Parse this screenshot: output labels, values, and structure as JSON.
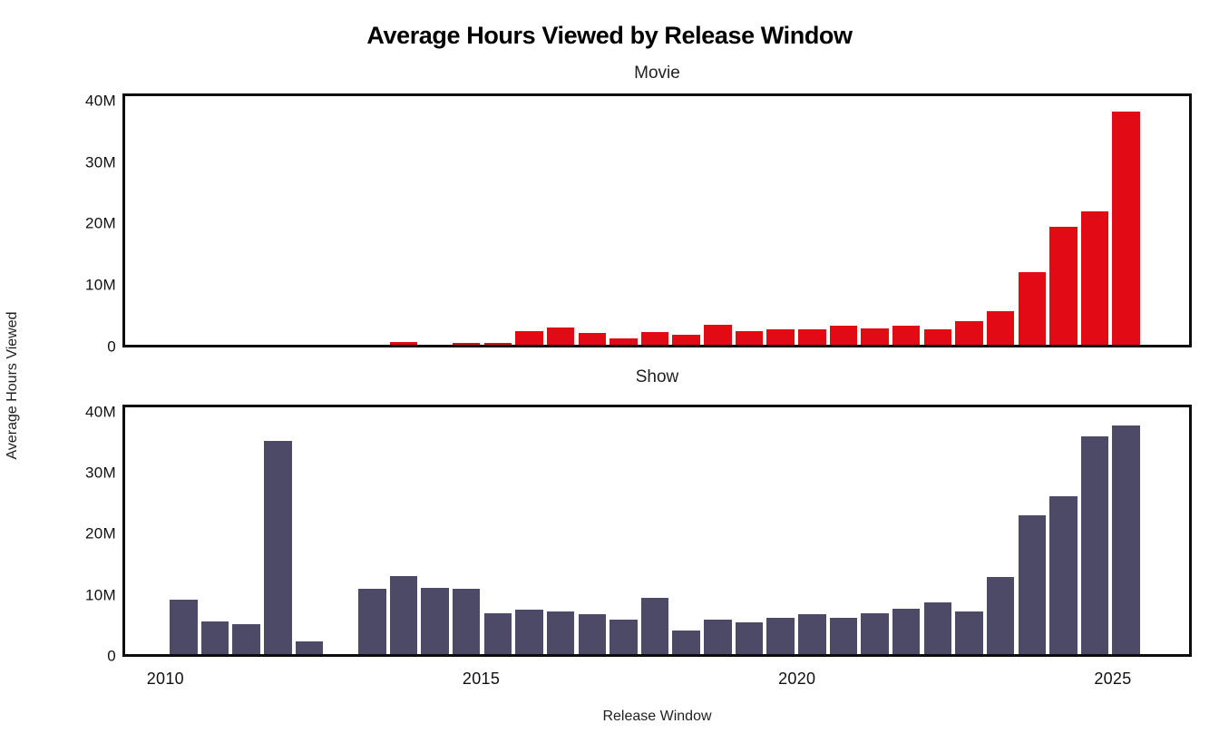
{
  "title": "Average Hours Viewed by Release Window",
  "axis": {
    "xlabel": "Release Window",
    "ylabel": "Average Hours Viewed"
  },
  "colors": {
    "movie_bar": "#E20B14",
    "show_bar": "#4C4A66",
    "frame": "#0D0D0D",
    "text": "#1A1A1A"
  },
  "chart_data": [
    {
      "type": "bar",
      "title": "Movie",
      "series_name": "Movie",
      "color": "#E20B14",
      "unit": "hours (M = millions)",
      "bar_width_years": 0.44,
      "xlim": [
        2009.32,
        2026.25
      ],
      "ylim_millions": [
        0,
        41
      ],
      "grid": false,
      "x": [
        2013.75,
        2014.75,
        2015.25,
        2015.75,
        2016.25,
        2016.75,
        2017.25,
        2017.75,
        2018.25,
        2018.75,
        2019.25,
        2019.75,
        2020.25,
        2020.75,
        2021.25,
        2021.75,
        2022.25,
        2022.75,
        2023.25,
        2023.75,
        2024.25,
        2024.75,
        2025.25
      ],
      "period_labels": [
        "2013 H2",
        "2014 H2",
        "2015 H1",
        "2015 H2",
        "2016 H1",
        "2016 H2",
        "2017 H1",
        "2017 H2",
        "2018 H1",
        "2018 H2",
        "2019 H1",
        "2019 H2",
        "2020 H1",
        "2020 H2",
        "2021 H1",
        "2021 H2",
        "2022 H1",
        "2022 H2",
        "2023 H1",
        "2023 H2",
        "2024 H1",
        "2024 H2",
        "2025 H1"
      ],
      "values_millions": [
        0.4,
        0.3,
        0.3,
        2.3,
        2.9,
        1.9,
        1.0,
        2.1,
        1.7,
        3.3,
        2.2,
        2.5,
        2.5,
        3.1,
        2.7,
        3.2,
        2.6,
        3.9,
        5.5,
        12.0,
        19.5,
        22.0,
        38.5
      ],
      "yticks": {
        "values_millions": [
          0,
          10,
          20,
          30,
          40
        ],
        "labels": [
          "0",
          "10M",
          "20M",
          "30M",
          "40M"
        ]
      },
      "xticks": {
        "values": [
          2010,
          2015,
          2020,
          2025
        ],
        "labels": [
          "2010",
          "2015",
          "2020",
          "2025"
        ],
        "shown_on_this_subplot": false
      }
    },
    {
      "type": "bar",
      "title": "Show",
      "series_name": "Show",
      "color": "#4C4A66",
      "unit": "hours (M = millions)",
      "bar_width_years": 0.44,
      "xlim": [
        2009.32,
        2026.25
      ],
      "ylim_millions": [
        0,
        41
      ],
      "grid": false,
      "x": [
        2010.25,
        2010.75,
        2011.25,
        2011.75,
        2012.25,
        2013.25,
        2013.75,
        2014.25,
        2014.75,
        2015.25,
        2015.75,
        2016.25,
        2016.75,
        2017.25,
        2017.75,
        2018.25,
        2018.75,
        2019.25,
        2019.75,
        2020.25,
        2020.75,
        2021.25,
        2021.75,
        2022.25,
        2022.75,
        2023.25,
        2023.75,
        2024.25,
        2024.75,
        2025.25
      ],
      "period_labels": [
        "2010 H1",
        "2010 H2",
        "2011 H1",
        "2011 H2",
        "2012 H1",
        "2013 H1",
        "2013 H2",
        "2014 H1",
        "2014 H2",
        "2015 H1",
        "2015 H2",
        "2016 H1",
        "2016 H2",
        "2017 H1",
        "2017 H2",
        "2018 H1",
        "2018 H2",
        "2019 H1",
        "2019 H2",
        "2020 H1",
        "2020 H2",
        "2021 H1",
        "2021 H2",
        "2022 H1",
        "2022 H2",
        "2023 H1",
        "2023 H2",
        "2024 H1",
        "2024 H2",
        "2025 H1"
      ],
      "values_millions": [
        9.0,
        5.4,
        5.0,
        35.4,
        2.1,
        10.8,
        12.9,
        11.0,
        10.9,
        6.8,
        7.4,
        7.1,
        6.7,
        5.7,
        9.3,
        3.9,
        5.8,
        5.3,
        6.1,
        6.7,
        6.1,
        6.8,
        7.6,
        8.6,
        7.1,
        12.8,
        23.0,
        26.2,
        36.2,
        38.0
      ],
      "yticks": {
        "values_millions": [
          0,
          10,
          20,
          30,
          40
        ],
        "labels": [
          "0",
          "10M",
          "20M",
          "30M",
          "40M"
        ]
      },
      "xticks": {
        "values": [
          2010,
          2015,
          2020,
          2025
        ],
        "labels": [
          "2010",
          "2015",
          "2020",
          "2025"
        ],
        "shown_on_this_subplot": true
      }
    }
  ]
}
